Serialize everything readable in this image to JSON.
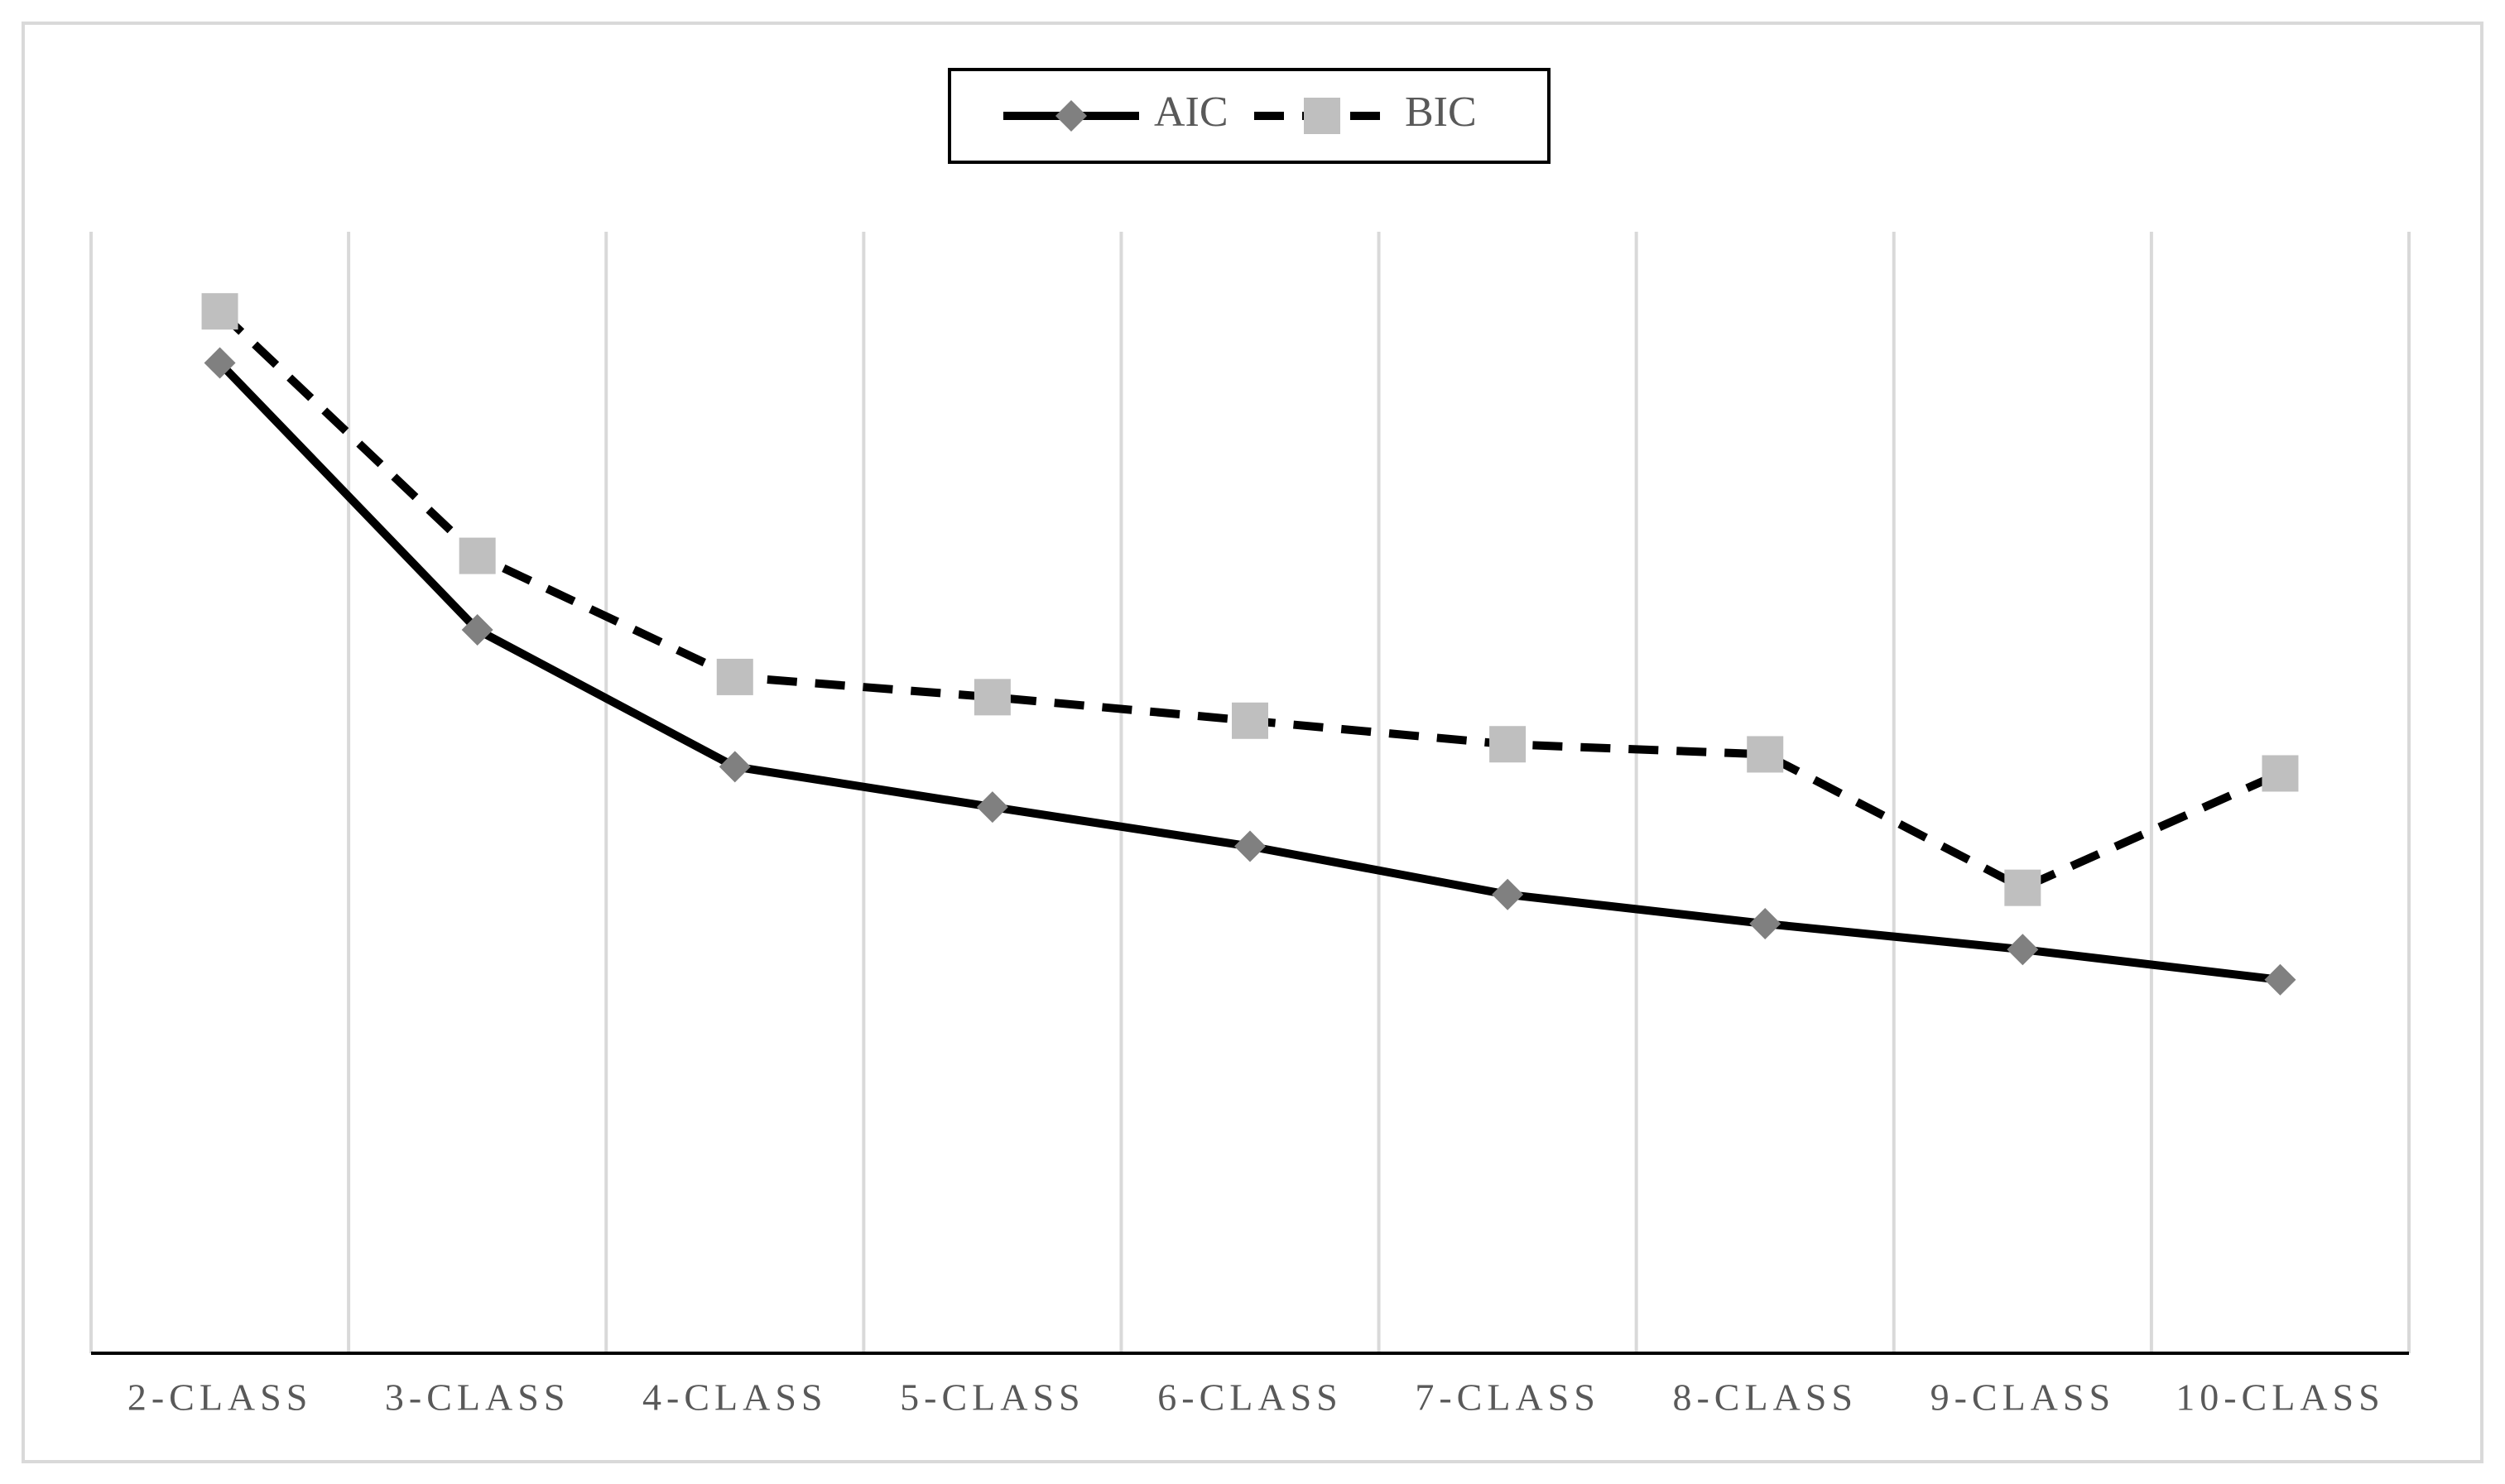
{
  "chart_data": {
    "type": "line",
    "categories": [
      "2-CLASS",
      "3-CLASS",
      "4-CLASS",
      "5-CLASS",
      "6-CLASS",
      "7-CLASS",
      "8-CLASS",
      "9-CLASS",
      "10-CLASS"
    ],
    "series": [
      {
        "name": "AIC",
        "color": "#808080",
        "line_color": "#000000",
        "line_style": "solid",
        "marker": "diamond",
        "values": [
          88.3,
          64.5,
          52.3,
          48.7,
          45.2,
          40.9,
          38.3,
          36.0,
          33.3
        ]
      },
      {
        "name": "BIC",
        "color": "#bfbfbf",
        "line_color": "#000000",
        "line_style": "dashed",
        "marker": "square",
        "values": [
          92.9,
          71.1,
          60.3,
          58.5,
          56.4,
          54.3,
          53.4,
          41.5,
          51.7
        ]
      }
    ],
    "ylim": [
      0,
      100
    ],
    "grid": true,
    "legend": "top"
  }
}
